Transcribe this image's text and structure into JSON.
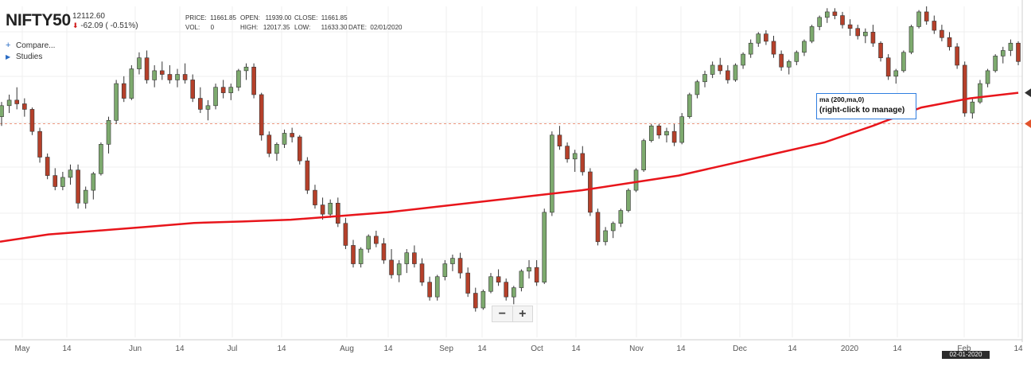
{
  "header": {
    "symbol": "NIFTY50",
    "last": "12112.60",
    "change": "-62.09 ( -0.51%)",
    "price_label": "PRICE:",
    "price": "11661.85",
    "open_label": "OPEN:",
    "open": "11939.00",
    "close_label": "CLOSE:",
    "close": "11661.85",
    "vol_label": "VOL:",
    "vol": "0",
    "high_label": "HIGH:",
    "high": "12017.35",
    "low_label": "LOW:",
    "low": "11633.30",
    "date_label": "DATE:",
    "date": "02/01/2020"
  },
  "menu": {
    "compare": "Compare...",
    "studies": "Studies"
  },
  "tooltip": {
    "line1": "ma (200,ma,0)",
    "line2": "(right-click to manage)"
  },
  "zoom": {
    "minus": "−",
    "plus": "+"
  },
  "crosshair_date": "02-01-2020",
  "colors": {
    "up": "#7daa6e",
    "down": "#b5402a",
    "ma": "#e8151b",
    "price_marker": "#e2542d",
    "ma_marker": "#333333"
  },
  "chart_data": {
    "type": "candlestick",
    "x_ticks": [
      "May",
      "14",
      "Jun",
      "14",
      "Jul",
      "14",
      "Aug",
      "14",
      "Sep",
      "14",
      "Oct",
      "14",
      "Nov",
      "14",
      "Dec",
      "14",
      "2020",
      "14",
      "Feb",
      "14"
    ],
    "current_price": 11661.85,
    "ylim": [
      10500,
      12300
    ],
    "series": [
      {
        "name": "ma (200,ma,0)",
        "type": "line",
        "values": [
          11020,
          11060,
          11080,
          11100,
          11122,
          11130,
          11140,
          11160,
          11180,
          11210,
          11240,
          11270,
          11300,
          11340,
          11380,
          11440,
          11500,
          11560,
          11650,
          11750,
          11800,
          11830
        ]
      },
      {
        "type": "ohlc",
        "ohlc": [
          [
            11700,
            11780,
            11650,
            11760
          ],
          [
            11760,
            11820,
            11720,
            11790
          ],
          [
            11790,
            11860,
            11740,
            11770
          ],
          [
            11770,
            11800,
            11700,
            11740
          ],
          [
            11740,
            11750,
            11600,
            11620
          ],
          [
            11620,
            11640,
            11450,
            11480
          ],
          [
            11480,
            11500,
            11360,
            11380
          ],
          [
            11380,
            11420,
            11300,
            11320
          ],
          [
            11320,
            11400,
            11300,
            11370
          ],
          [
            11370,
            11440,
            11330,
            11410
          ],
          [
            11410,
            11440,
            11200,
            11230
          ],
          [
            11230,
            11320,
            11200,
            11300
          ],
          [
            11300,
            11400,
            11250,
            11390
          ],
          [
            11390,
            11560,
            11380,
            11550
          ],
          [
            11550,
            11700,
            11500,
            11680
          ],
          [
            11680,
            11900,
            11660,
            11880
          ],
          [
            11880,
            11920,
            11780,
            11800
          ],
          [
            11800,
            11980,
            11790,
            11960
          ],
          [
            11960,
            12050,
            11930,
            12020
          ],
          [
            12020,
            12060,
            11880,
            11900
          ],
          [
            11900,
            11980,
            11860,
            11950
          ],
          [
            11950,
            12000,
            11900,
            11930
          ],
          [
            11930,
            11980,
            11880,
            11900
          ],
          [
            11900,
            11960,
            11860,
            11930
          ],
          [
            11930,
            11990,
            11880,
            11900
          ],
          [
            11900,
            11930,
            11780,
            11800
          ],
          [
            11800,
            11860,
            11720,
            11740
          ],
          [
            11740,
            11790,
            11680,
            11760
          ],
          [
            11760,
            11880,
            11740,
            11860
          ],
          [
            11860,
            11900,
            11800,
            11830
          ],
          [
            11830,
            11880,
            11790,
            11860
          ],
          [
            11860,
            11960,
            11840,
            11950
          ],
          [
            11950,
            11990,
            11900,
            11970
          ],
          [
            11970,
            11990,
            11800,
            11820
          ],
          [
            11820,
            11830,
            11570,
            11600
          ],
          [
            11600,
            11620,
            11480,
            11500
          ],
          [
            11500,
            11560,
            11460,
            11550
          ],
          [
            11550,
            11630,
            11530,
            11610
          ],
          [
            11610,
            11640,
            11560,
            11590
          ],
          [
            11590,
            11600,
            11440,
            11460
          ],
          [
            11460,
            11480,
            11280,
            11300
          ],
          [
            11300,
            11330,
            11200,
            11220
          ],
          [
            11220,
            11260,
            11140,
            11170
          ],
          [
            11170,
            11250,
            11150,
            11230
          ],
          [
            11230,
            11260,
            11100,
            11120
          ],
          [
            11120,
            11150,
            10980,
            11000
          ],
          [
            11000,
            11030,
            10880,
            10900
          ],
          [
            10900,
            10990,
            10880,
            10980
          ],
          [
            10980,
            11060,
            10960,
            11050
          ],
          [
            11050,
            11080,
            10990,
            11010
          ],
          [
            11010,
            11040,
            10900,
            10920
          ],
          [
            10920,
            10980,
            10820,
            10840
          ],
          [
            10840,
            10920,
            10800,
            10900
          ],
          [
            10900,
            10980,
            10850,
            10960
          ],
          [
            10960,
            11000,
            10880,
            10900
          ],
          [
            10900,
            10930,
            10780,
            10800
          ],
          [
            10800,
            10830,
            10700,
            10720
          ],
          [
            10720,
            10840,
            10700,
            10830
          ],
          [
            10830,
            10920,
            10810,
            10900
          ],
          [
            10900,
            10950,
            10860,
            10930
          ],
          [
            10930,
            10960,
            10820,
            10850
          ],
          [
            10850,
            10880,
            10720,
            10740
          ],
          [
            10740,
            10770,
            10640,
            10660
          ],
          [
            10660,
            10760,
            10650,
            10750
          ],
          [
            10750,
            10850,
            10740,
            10830
          ],
          [
            10830,
            10870,
            10780,
            10800
          ],
          [
            10800,
            10820,
            10700,
            10720
          ],
          [
            10720,
            10780,
            10680,
            10770
          ],
          [
            10770,
            10870,
            10750,
            10860
          ],
          [
            10860,
            10920,
            10820,
            10880
          ],
          [
            10880,
            10920,
            10780,
            10800
          ],
          [
            10800,
            11200,
            10790,
            11180
          ],
          [
            11180,
            11620,
            11160,
            11600
          ],
          [
            11600,
            11650,
            11520,
            11540
          ],
          [
            11540,
            11560,
            11450,
            11470
          ],
          [
            11470,
            11520,
            11400,
            11500
          ],
          [
            11500,
            11540,
            11380,
            11400
          ],
          [
            11400,
            11420,
            11160,
            11180
          ],
          [
            11180,
            11200,
            11000,
            11020
          ],
          [
            11020,
            11100,
            11000,
            11080
          ],
          [
            11080,
            11130,
            11040,
            11120
          ],
          [
            11120,
            11200,
            11100,
            11190
          ],
          [
            11190,
            11310,
            11180,
            11300
          ],
          [
            11300,
            11420,
            11290,
            11410
          ],
          [
            11410,
            11580,
            11400,
            11570
          ],
          [
            11570,
            11660,
            11560,
            11650
          ],
          [
            11650,
            11660,
            11580,
            11600
          ],
          [
            11600,
            11640,
            11560,
            11620
          ],
          [
            11620,
            11660,
            11540,
            11560
          ],
          [
            11560,
            11720,
            11550,
            11700
          ],
          [
            11700,
            11830,
            11690,
            11820
          ],
          [
            11820,
            11900,
            11800,
            11890
          ],
          [
            11890,
            11950,
            11860,
            11930
          ],
          [
            11930,
            12000,
            11910,
            11980
          ],
          [
            11980,
            12020,
            11930,
            11950
          ],
          [
            11950,
            11980,
            11880,
            11900
          ],
          [
            11900,
            11990,
            11890,
            11980
          ],
          [
            11980,
            12050,
            11960,
            12040
          ],
          [
            12040,
            12120,
            12020,
            12100
          ],
          [
            12100,
            12160,
            12080,
            12150
          ],
          [
            12150,
            12170,
            12090,
            12110
          ],
          [
            12110,
            12140,
            12020,
            12040
          ],
          [
            12040,
            12060,
            11950,
            11970
          ],
          [
            11970,
            12010,
            11930,
            12000
          ],
          [
            12000,
            12060,
            11980,
            12050
          ],
          [
            12050,
            12120,
            12030,
            12110
          ],
          [
            12110,
            12200,
            12100,
            12190
          ],
          [
            12190,
            12250,
            12170,
            12240
          ],
          [
            12240,
            12290,
            12210,
            12270
          ],
          [
            12270,
            12290,
            12230,
            12250
          ],
          [
            12250,
            12270,
            12180,
            12200
          ],
          [
            12200,
            12230,
            12140,
            12180
          ],
          [
            12180,
            12200,
            12120,
            12140
          ],
          [
            12140,
            12180,
            12100,
            12160
          ],
          [
            12160,
            12200,
            12080,
            12100
          ],
          [
            12100,
            12110,
            12000,
            12020
          ],
          [
            12020,
            12040,
            11900,
            11920
          ],
          [
            11920,
            11960,
            11880,
            11950
          ],
          [
            11950,
            12060,
            11940,
            12050
          ],
          [
            12050,
            12200,
            12040,
            12190
          ],
          [
            12190,
            12280,
            12180,
            12270
          ],
          [
            12270,
            12300,
            12200,
            12220
          ],
          [
            12220,
            12250,
            12150,
            12170
          ],
          [
            12170,
            12200,
            12110,
            12130
          ],
          [
            12130,
            12160,
            12060,
            12080
          ],
          [
            12080,
            12100,
            11960,
            11980
          ],
          [
            11980,
            12000,
            11700,
            11720
          ],
          [
            11720,
            11800,
            11690,
            11780
          ],
          [
            11780,
            11900,
            11770,
            11880
          ],
          [
            11880,
            11960,
            11860,
            11950
          ],
          [
            11950,
            12040,
            11940,
            12030
          ],
          [
            12030,
            12080,
            11990,
            12060
          ],
          [
            12060,
            12120,
            12030,
            12100
          ],
          [
            12100,
            12110,
            11980,
            12000
          ]
        ]
      }
    ],
    "title": "",
    "xlabel": "",
    "ylabel": ""
  }
}
